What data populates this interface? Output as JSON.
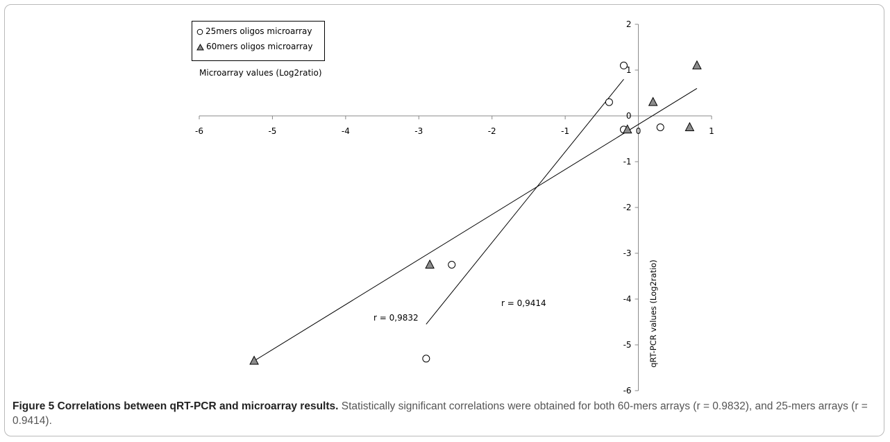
{
  "chart_data": {
    "type": "scatter",
    "title": "",
    "xlabel": "Microarray values (Log2ratio)",
    "ylabel": "qRT-PCR values (Log2ratio)",
    "xlim": [
      -6,
      1
    ],
    "ylim": [
      -6,
      2
    ],
    "x_ticks": [
      -6,
      -5,
      -4,
      -3,
      -2,
      -1,
      0,
      1
    ],
    "y_ticks": [
      2,
      1,
      0,
      -1,
      -2,
      -3,
      -4,
      -5,
      -6
    ],
    "grid": false,
    "legend_position": "top-left",
    "series": [
      {
        "name": "25mers oligos microarray",
        "marker": "open-circle",
        "color": "#ffffff",
        "points": [
          {
            "x": -0.2,
            "y": 1.1
          },
          {
            "x": -0.4,
            "y": 0.3
          },
          {
            "x": -0.2,
            "y": -0.3
          },
          {
            "x": 0.3,
            "y": -0.25
          },
          {
            "x": -2.55,
            "y": -3.25
          },
          {
            "x": -2.9,
            "y": -5.3
          }
        ],
        "fit_line": {
          "x": [
            -2.9,
            -0.2
          ],
          "y": [
            -4.55,
            0.8
          ]
        },
        "r_label": "r = 0,9414"
      },
      {
        "name": "60mers oligos microarray",
        "marker": "filled-triangle",
        "color": "#8c8c8c",
        "points": [
          {
            "x": 0.8,
            "y": 1.1
          },
          {
            "x": 0.2,
            "y": 0.3
          },
          {
            "x": -0.15,
            "y": -0.3
          },
          {
            "x": 0.7,
            "y": -0.25
          },
          {
            "x": -2.85,
            "y": -3.25
          },
          {
            "x": -5.25,
            "y": -5.35
          }
        ],
        "fit_line": {
          "x": [
            -5.25,
            0.8
          ],
          "y": [
            -5.35,
            0.6
          ]
        },
        "r_label": "r = 0,9832"
      }
    ]
  },
  "caption": {
    "label": "Figure 5 Correlations between qRT-PCR and microarray results.",
    "text": "Statistically significant correlations were obtained for both 60-mers arrays (r = 0.9832), and 25-mers arrays (r = 0.9414)."
  }
}
